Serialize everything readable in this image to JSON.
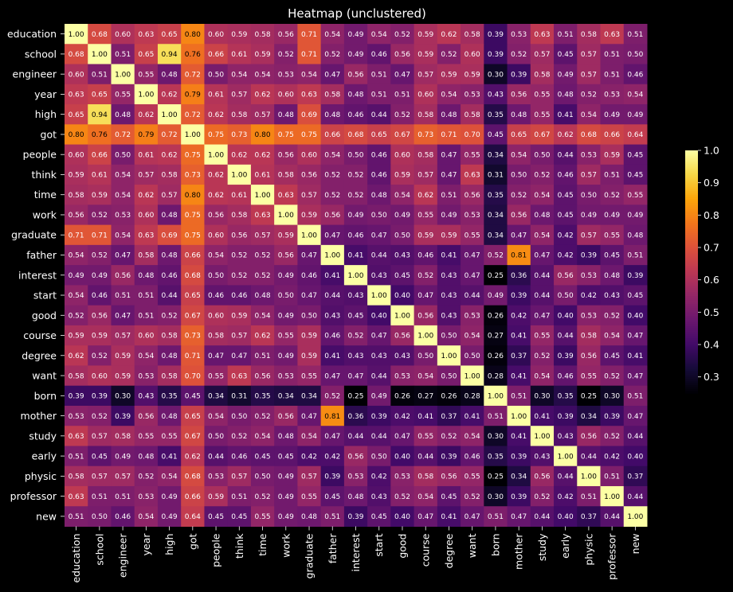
{
  "chart_data": {
    "type": "heatmap",
    "title": "Heatmap (unclustered)",
    "labels": [
      "education",
      "school",
      "engineer",
      "year",
      "high",
      "got",
      "people",
      "think",
      "time",
      "work",
      "graduate",
      "father",
      "interest",
      "start",
      "good",
      "course",
      "degree",
      "want",
      "born",
      "mother",
      "study",
      "early",
      "physic",
      "professor",
      "new"
    ],
    "matrix": [
      [
        1.0,
        0.68,
        0.6,
        0.63,
        0.65,
        0.8,
        0.6,
        0.59,
        0.58,
        0.56,
        0.71,
        0.54,
        0.49,
        0.54,
        0.52,
        0.59,
        0.62,
        0.58,
        0.39,
        0.53,
        0.63,
        0.51,
        0.58,
        0.63,
        0.51
      ],
      [
        0.68,
        1.0,
        0.51,
        0.65,
        0.94,
        0.76,
        0.66,
        0.61,
        0.59,
        0.52,
        0.71,
        0.52,
        0.49,
        0.46,
        0.56,
        0.59,
        0.52,
        0.6,
        0.39,
        0.52,
        0.57,
        0.45,
        0.57,
        0.51,
        0.5
      ],
      [
        0.6,
        0.51,
        1.0,
        0.55,
        0.48,
        0.72,
        0.5,
        0.54,
        0.54,
        0.53,
        0.54,
        0.47,
        0.56,
        0.51,
        0.47,
        0.57,
        0.59,
        0.59,
        0.3,
        0.39,
        0.58,
        0.49,
        0.57,
        0.51,
        0.46
      ],
      [
        0.63,
        0.65,
        0.55,
        1.0,
        0.62,
        0.79,
        0.61,
        0.57,
        0.62,
        0.6,
        0.63,
        0.58,
        0.48,
        0.51,
        0.51,
        0.6,
        0.54,
        0.53,
        0.43,
        0.56,
        0.55,
        0.48,
        0.52,
        0.53,
        0.54
      ],
      [
        0.65,
        0.94,
        0.48,
        0.62,
        1.0,
        0.72,
        0.62,
        0.58,
        0.57,
        0.48,
        0.69,
        0.48,
        0.46,
        0.44,
        0.52,
        0.58,
        0.48,
        0.58,
        0.35,
        0.48,
        0.55,
        0.41,
        0.54,
        0.49,
        0.49
      ],
      [
        0.8,
        0.76,
        0.72,
        0.79,
        0.72,
        1.0,
        0.75,
        0.73,
        0.8,
        0.75,
        0.75,
        0.66,
        0.68,
        0.65,
        0.67,
        0.73,
        0.71,
        0.7,
        0.45,
        0.65,
        0.67,
        0.62,
        0.68,
        0.66,
        0.64
      ],
      [
        0.6,
        0.66,
        0.5,
        0.61,
        0.62,
        0.75,
        1.0,
        0.62,
        0.62,
        0.56,
        0.6,
        0.54,
        0.5,
        0.46,
        0.6,
        0.58,
        0.47,
        0.55,
        0.34,
        0.54,
        0.5,
        0.44,
        0.53,
        0.59,
        0.45
      ],
      [
        0.59,
        0.61,
        0.54,
        0.57,
        0.58,
        0.73,
        0.62,
        1.0,
        0.61,
        0.58,
        0.56,
        0.52,
        0.52,
        0.46,
        0.59,
        0.57,
        0.47,
        0.63,
        0.31,
        0.5,
        0.52,
        0.46,
        0.57,
        0.51,
        0.45
      ],
      [
        0.58,
        0.59,
        0.54,
        0.62,
        0.57,
        0.8,
        0.62,
        0.61,
        1.0,
        0.63,
        0.57,
        0.52,
        0.52,
        0.48,
        0.54,
        0.62,
        0.51,
        0.56,
        0.35,
        0.52,
        0.54,
        0.45,
        0.5,
        0.52,
        0.55
      ],
      [
        0.56,
        0.52,
        0.53,
        0.6,
        0.48,
        0.75,
        0.56,
        0.58,
        0.63,
        1.0,
        0.59,
        0.56,
        0.49,
        0.5,
        0.49,
        0.55,
        0.49,
        0.53,
        0.34,
        0.56,
        0.48,
        0.45,
        0.49,
        0.49,
        0.49
      ],
      [
        0.71,
        0.71,
        0.54,
        0.63,
        0.69,
        0.75,
        0.6,
        0.56,
        0.57,
        0.59,
        1.0,
        0.47,
        0.46,
        0.47,
        0.5,
        0.59,
        0.59,
        0.55,
        0.34,
        0.47,
        0.54,
        0.42,
        0.57,
        0.55,
        0.48
      ],
      [
        0.54,
        0.52,
        0.47,
        0.58,
        0.48,
        0.66,
        0.54,
        0.52,
        0.52,
        0.56,
        0.47,
        1.0,
        0.41,
        0.44,
        0.43,
        0.46,
        0.41,
        0.47,
        0.52,
        0.81,
        0.47,
        0.42,
        0.39,
        0.45,
        0.51
      ],
      [
        0.49,
        0.49,
        0.56,
        0.48,
        0.46,
        0.68,
        0.5,
        0.52,
        0.52,
        0.49,
        0.46,
        0.41,
        1.0,
        0.43,
        0.45,
        0.52,
        0.43,
        0.47,
        0.25,
        0.36,
        0.44,
        0.56,
        0.53,
        0.48,
        0.39
      ],
      [
        0.54,
        0.46,
        0.51,
        0.51,
        0.44,
        0.65,
        0.46,
        0.46,
        0.48,
        0.5,
        0.47,
        0.44,
        0.43,
        1.0,
        0.4,
        0.47,
        0.43,
        0.44,
        0.49,
        0.39,
        0.44,
        0.5,
        0.42,
        0.43,
        0.45
      ],
      [
        0.52,
        0.56,
        0.47,
        0.51,
        0.52,
        0.67,
        0.6,
        0.59,
        0.54,
        0.49,
        0.5,
        0.43,
        0.45,
        0.4,
        1.0,
        0.56,
        0.43,
        0.53,
        0.26,
        0.42,
        0.47,
        0.4,
        0.53,
        0.52,
        0.4
      ],
      [
        0.59,
        0.59,
        0.57,
        0.6,
        0.58,
        0.73,
        0.58,
        0.57,
        0.62,
        0.55,
        0.59,
        0.46,
        0.52,
        0.47,
        0.56,
        1.0,
        0.5,
        0.54,
        0.27,
        0.41,
        0.55,
        0.44,
        0.58,
        0.54,
        0.47
      ],
      [
        0.62,
        0.52,
        0.59,
        0.54,
        0.48,
        0.71,
        0.47,
        0.47,
        0.51,
        0.49,
        0.59,
        0.41,
        0.43,
        0.43,
        0.43,
        0.5,
        1.0,
        0.5,
        0.26,
        0.37,
        0.52,
        0.39,
        0.56,
        0.45,
        0.41
      ],
      [
        0.58,
        0.6,
        0.59,
        0.53,
        0.58,
        0.7,
        0.55,
        0.63,
        0.56,
        0.53,
        0.55,
        0.47,
        0.47,
        0.44,
        0.53,
        0.54,
        0.5,
        1.0,
        0.28,
        0.41,
        0.54,
        0.46,
        0.55,
        0.52,
        0.47
      ],
      [
        0.39,
        0.39,
        0.3,
        0.43,
        0.35,
        0.45,
        0.34,
        0.31,
        0.35,
        0.34,
        0.34,
        0.52,
        0.25,
        0.49,
        0.26,
        0.27,
        0.26,
        0.28,
        1.0,
        0.51,
        0.3,
        0.35,
        0.25,
        0.3,
        0.51
      ],
      [
        0.53,
        0.52,
        0.39,
        0.56,
        0.48,
        0.65,
        0.54,
        0.5,
        0.52,
        0.56,
        0.47,
        0.81,
        0.36,
        0.39,
        0.42,
        0.41,
        0.37,
        0.41,
        0.51,
        1.0,
        0.41,
        0.39,
        0.34,
        0.39,
        0.47
      ],
      [
        0.63,
        0.57,
        0.58,
        0.55,
        0.55,
        0.67,
        0.5,
        0.52,
        0.54,
        0.48,
        0.54,
        0.47,
        0.44,
        0.44,
        0.47,
        0.55,
        0.52,
        0.54,
        0.3,
        0.41,
        1.0,
        0.43,
        0.56,
        0.52,
        0.44
      ],
      [
        0.51,
        0.45,
        0.49,
        0.48,
        0.41,
        0.62,
        0.44,
        0.46,
        0.45,
        0.45,
        0.42,
        0.42,
        0.56,
        0.5,
        0.4,
        0.44,
        0.39,
        0.46,
        0.35,
        0.39,
        0.43,
        1.0,
        0.44,
        0.42,
        0.4
      ],
      [
        0.58,
        0.57,
        0.57,
        0.52,
        0.54,
        0.68,
        0.53,
        0.57,
        0.5,
        0.49,
        0.57,
        0.39,
        0.53,
        0.42,
        0.53,
        0.58,
        0.56,
        0.55,
        0.25,
        0.34,
        0.56,
        0.44,
        1.0,
        0.51,
        0.37
      ],
      [
        0.63,
        0.51,
        0.51,
        0.53,
        0.49,
        0.66,
        0.59,
        0.51,
        0.52,
        0.49,
        0.55,
        0.45,
        0.48,
        0.43,
        0.52,
        0.54,
        0.45,
        0.52,
        0.3,
        0.39,
        0.52,
        0.42,
        0.51,
        1.0,
        0.44
      ],
      [
        0.51,
        0.5,
        0.46,
        0.54,
        0.49,
        0.64,
        0.45,
        0.45,
        0.55,
        0.49,
        0.48,
        0.51,
        0.39,
        0.45,
        0.4,
        0.47,
        0.41,
        0.47,
        0.51,
        0.47,
        0.44,
        0.4,
        0.37,
        0.44,
        1.0
      ]
    ],
    "colorbar": {
      "min": 0.25,
      "max": 1.0,
      "ticks": [
        0.3,
        0.4,
        0.5,
        0.6,
        0.7,
        0.8,
        0.9,
        1.0
      ],
      "colormap": "inferno"
    }
  },
  "colors": {
    "background": "#000000",
    "text": "#ffffff"
  }
}
